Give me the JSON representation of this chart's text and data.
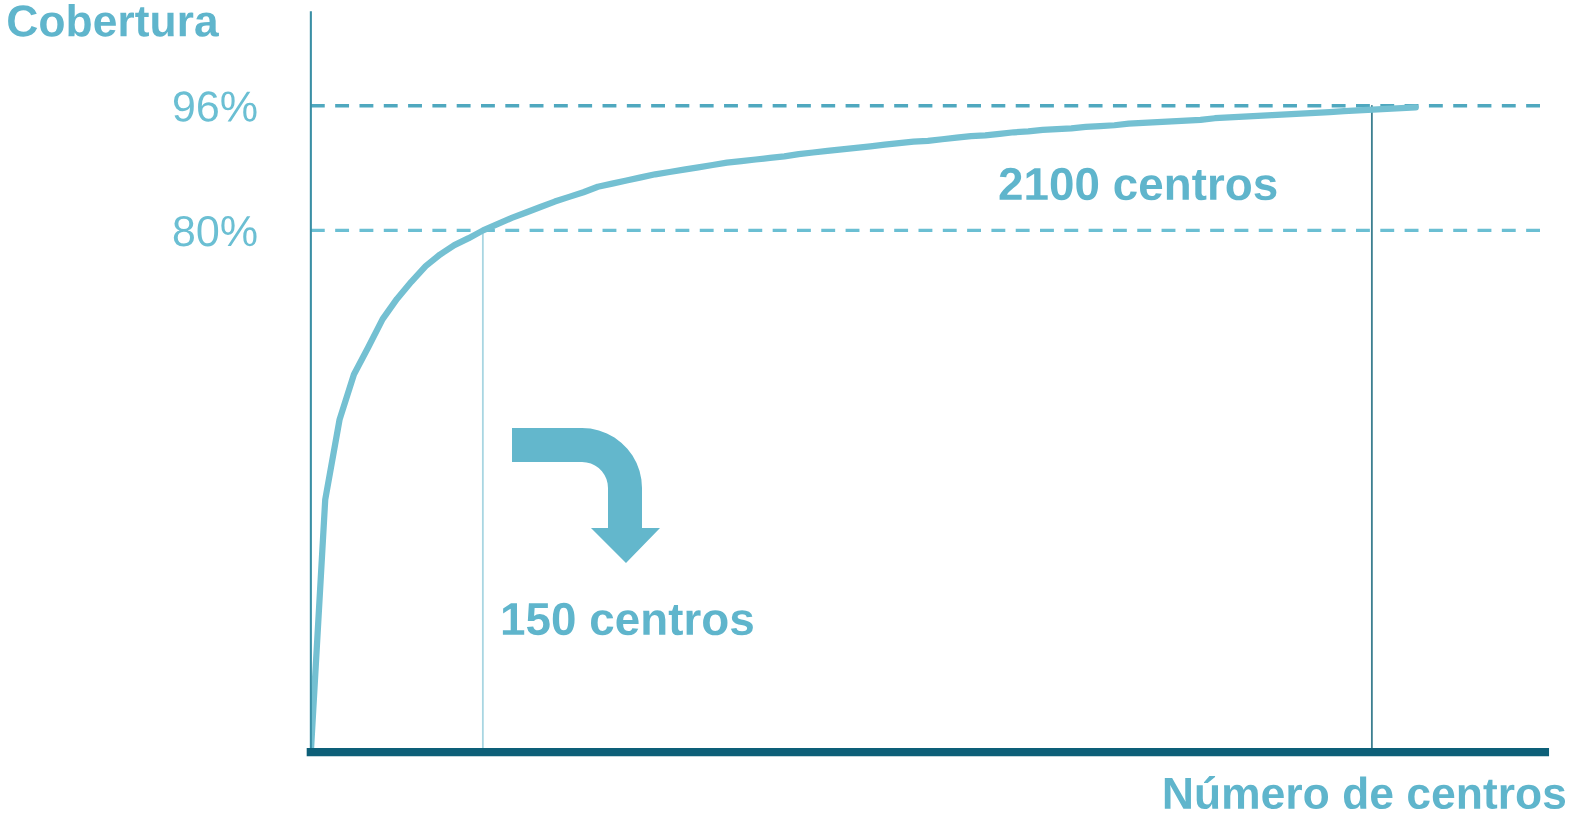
{
  "chart_data": {
    "type": "line",
    "title": "Cobertura",
    "xlabel": "Número de centros",
    "categories": [
      null,
      null,
      null,
      null,
      null,
      null,
      null,
      null,
      null,
      null,
      null,
      null,
      null,
      null,
      null,
      null,
      null,
      null,
      null,
      null,
      null,
      null,
      null,
      null,
      null,
      null,
      null,
      null,
      null,
      null,
      null,
      null,
      null,
      null,
      null,
      null,
      null,
      null,
      null,
      null,
      null,
      null,
      null,
      null,
      null,
      null,
      null,
      null,
      null,
      null,
      null,
      null,
      null,
      null,
      null,
      null,
      null,
      null,
      null,
      null,
      null,
      null,
      null,
      null,
      null,
      null,
      null,
      null,
      null,
      null,
      null,
      null,
      null,
      null,
      null,
      null,
      null,
      null,
      null,
      null,
      null,
      null,
      null,
      null,
      null,
      null,
      null
    ],
    "series": [
      {
        "color": "#74c0d2",
        "values": [
          13,
          45.4,
          55.7,
          61.5,
          65.0,
          68.6,
          71.2,
          73.4,
          75.4,
          76.9,
          78.1,
          79.0,
          80,
          80.8,
          81.6,
          82.3,
          83.0,
          83.7,
          84.3,
          84.9,
          85.6,
          86.0,
          86.4,
          86.8,
          87.2,
          87.5,
          87.8,
          88.1,
          88.4,
          88.7,
          88.9,
          89.1,
          89.3,
          89.5,
          89.8,
          90.0,
          90.2,
          90.4,
          90.6,
          90.8,
          91.0,
          91.2,
          91.4,
          91.5,
          91.7,
          91.9,
          92.1,
          92.2,
          92.4,
          92.6,
          92.7,
          92.9,
          93.0,
          93.1,
          93.3,
          93.4,
          93.5,
          93.7,
          93.8,
          93.9,
          94.0,
          94.1,
          94.2,
          94.4,
          94.5,
          94.6,
          94.7,
          94.8,
          94.9,
          95.0,
          95.1,
          95.2,
          95.3,
          95.4,
          95.5,
          95.6,
          95.7,
          95.8,
          null,
          null,
          null,
          null,
          null,
          null,
          null,
          null,
          null
        ]
      }
    ],
    "ylim": [
      13,
      108
    ],
    "yticks": [
      {
        "value": 80,
        "label": "80%"
      },
      {
        "value": 96,
        "label": "96%"
      }
    ],
    "ref_lines": [
      {
        "axis": "y",
        "value": 96,
        "color": "#4fa8bf",
        "line_style": "dashed"
      },
      {
        "axis": "y",
        "value": 80,
        "color": "#6bbfd3",
        "line_style": "dashed"
      }
    ],
    "annotations": [
      "150 centros",
      "2100 centros"
    ],
    "tick_labels": "y",
    "grid": false,
    "legend": false,
    "marker": "none",
    "line_style": "solid"
  }
}
